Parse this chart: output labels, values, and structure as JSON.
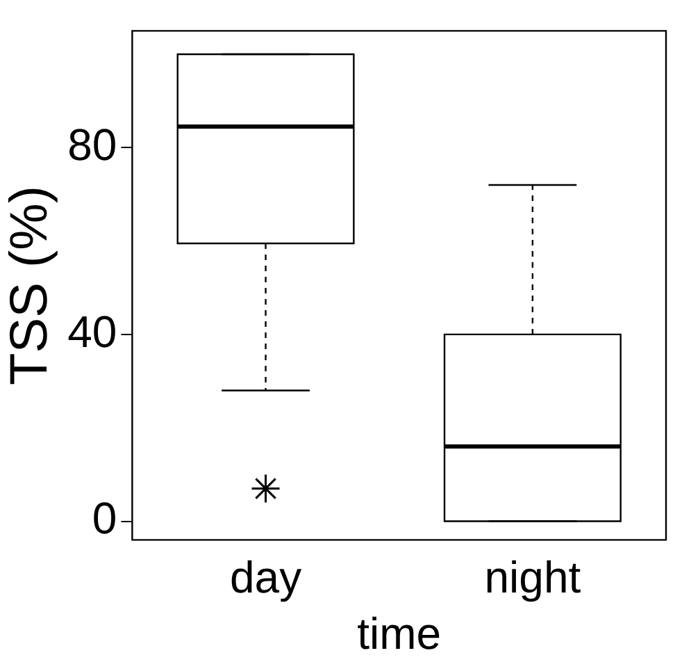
{
  "chart_data": {
    "type": "box",
    "xlabel": "time",
    "ylabel": "TSS (%)",
    "categories": [
      "day",
      "night"
    ],
    "boxes": [
      {
        "low": 28,
        "q1": 59.5,
        "median": 84.5,
        "q3": 100,
        "high": 100,
        "outliers": [
          7
        ]
      },
      {
        "low": 0,
        "q1": 0,
        "median": 16,
        "q3": 40,
        "high": 72
      }
    ],
    "color": "#000000",
    "marker": "star",
    "ylim": [
      -4,
      105
    ],
    "yticks": [
      0,
      40,
      80
    ],
    "grid": false,
    "legend": false
  }
}
